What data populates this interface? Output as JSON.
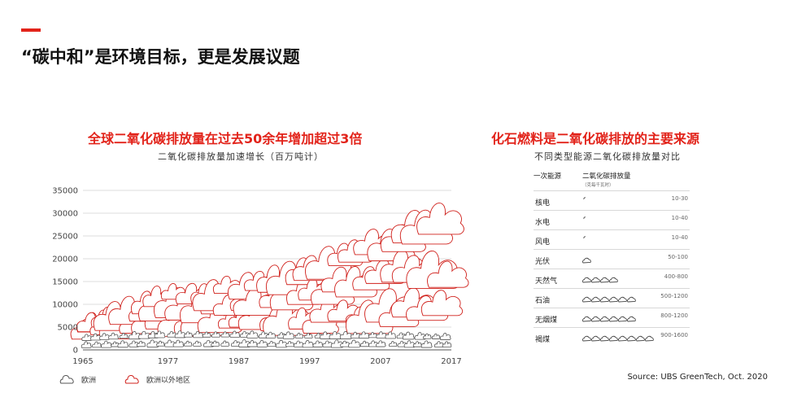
{
  "header": {
    "title": "“碳中和”是环境目标，更是发展议题"
  },
  "left": {
    "heading": "全球二氧化碳排放量在过去50余年增加超过3倍",
    "subheading": "二氧化碳排放量加速增长（百万吨计）"
  },
  "right": {
    "heading": "化石燃料是二氧化碳排放的主要来源",
    "subheading": "不同类型能源二氧化碳排放量对比",
    "col_source": "一次能源",
    "col_emission": "二氧化碳排放量",
    "col_emission_note": "（克每千瓦时）",
    "rows": [
      {
        "label": "核电",
        "range": "10-30",
        "icons": 1
      },
      {
        "label": "水电",
        "range": "10-40",
        "icons": 1
      },
      {
        "label": "风电",
        "range": "10-40",
        "icons": 1
      },
      {
        "label": "光伏",
        "range": "50-100",
        "icons": 1
      },
      {
        "label": "天然气",
        "range": "400-800",
        "icons": 4
      },
      {
        "label": "石油",
        "range": "500-1200",
        "icons": 6
      },
      {
        "label": "无烟煤",
        "range": "800-1200",
        "icons": 6
      },
      {
        "label": "褐煤",
        "range": "900-1600",
        "icons": 8
      }
    ]
  },
  "legend": {
    "europe": "欧洲",
    "rest_of_world": "欧洲以外地区"
  },
  "source": "Source: UBS GreenTech, Oct. 2020",
  "colors": {
    "accent": "#e2231a",
    "europe": "#555555",
    "rest": "#d0201b",
    "grid": "#bbbbbb"
  },
  "chart_data": {
    "type": "area",
    "title": "二氧化碳排放量加速增长（百万吨计）",
    "ylim": [
      0,
      35000
    ],
    "yticks": [
      "35000",
      "30000",
      "25000",
      "20000",
      "15000",
      "10000",
      "5000",
      "0"
    ],
    "xticks": [
      "1965",
      "1977",
      "1987",
      "1997",
      "2007",
      "2017"
    ],
    "grid": true,
    "legend": "bottom-left",
    "x": [
      1965,
      1970,
      1977,
      1982,
      1987,
      1992,
      1997,
      2002,
      2007,
      2012,
      2017
    ],
    "series": [
      {
        "name": "欧洲",
        "values": [
          3500,
          4000,
          4500,
          4400,
          4500,
          4200,
          4100,
          4200,
          4300,
          4000,
          3800
        ]
      },
      {
        "name": "欧洲以外地区",
        "values": [
          7500,
          10500,
          14500,
          14500,
          16500,
          18500,
          20500,
          24000,
          27000,
          30500,
          32500
        ]
      }
    ]
  }
}
